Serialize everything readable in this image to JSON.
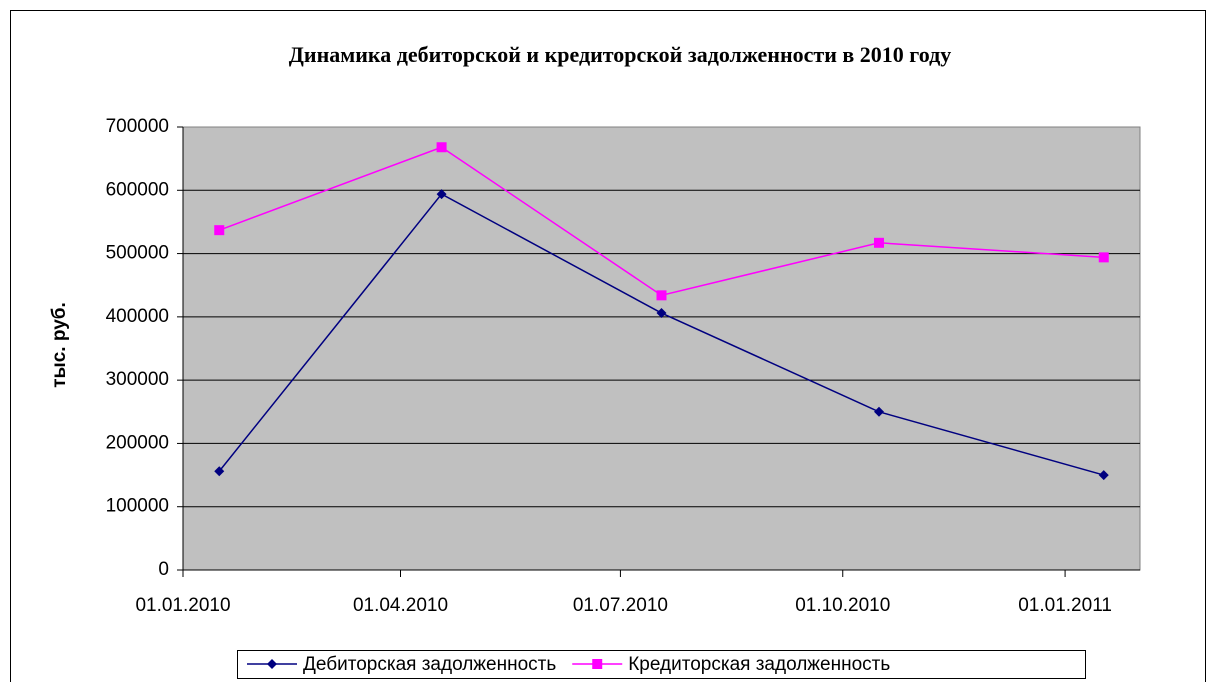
{
  "chart_data": {
    "type": "line",
    "title": "Динамика дебиторской и кредиторской задолженности в 2010 году",
    "y_label": "тыс. руб.",
    "x": [
      "2010-01-16",
      "2010-04-18",
      "2010-07-18",
      "2010-10-16",
      "2011-01-17"
    ],
    "xlim": [
      "2010-01-01",
      "2011-02-01"
    ],
    "xticks": [
      {
        "value": "2010-01-01",
        "label": "01.01.2010"
      },
      {
        "value": "2010-04-01",
        "label": "01.04.2010"
      },
      {
        "value": "2010-07-01",
        "label": "01.07.2010"
      },
      {
        "value": "2010-10-01",
        "label": "01.10.2010"
      },
      {
        "value": "2011-01-01",
        "label": "01.01.2011"
      }
    ],
    "ylim": [
      0,
      700000
    ],
    "yticks": [
      0,
      100000,
      200000,
      300000,
      400000,
      500000,
      600000,
      700000
    ],
    "grid": true,
    "legend": "bottom",
    "series": [
      {
        "name": "Дебиторская задолженность",
        "color": "#000080",
        "marker": "diamond",
        "values": [
          156000,
          594000,
          406000,
          250000,
          150000
        ]
      },
      {
        "name": "Кредиторская задолженность",
        "color": "#ff00ff",
        "marker": "square",
        "values": [
          537000,
          668000,
          434000,
          517000,
          494000
        ]
      }
    ]
  }
}
